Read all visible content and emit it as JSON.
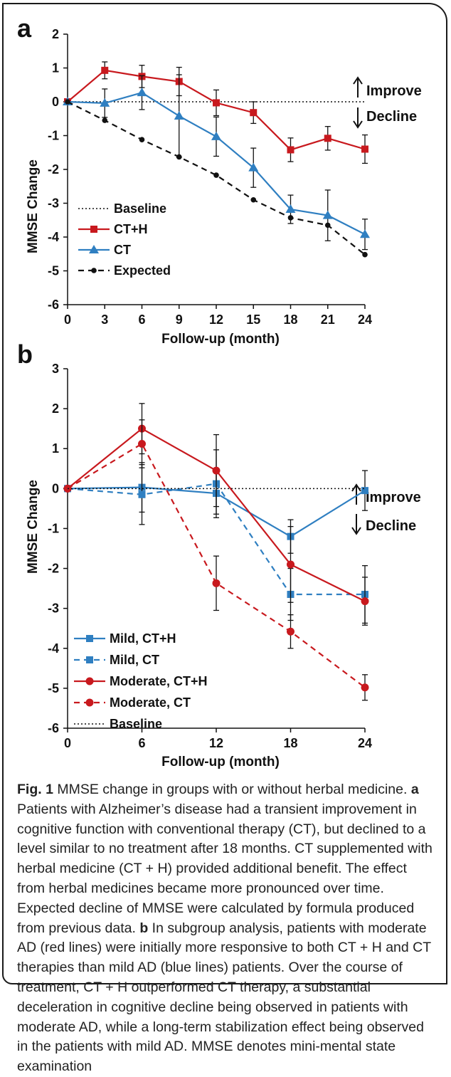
{
  "colors": {
    "red": "#c8191e",
    "blue": "#2f7fc1",
    "black": "#111111"
  },
  "chart_data": [
    {
      "type": "line",
      "panel_label": "a",
      "xlabel": "Follow-up (month)",
      "ylabel": "MMSE Change",
      "xlim": [
        0,
        24
      ],
      "ylim": [
        -6,
        2
      ],
      "xticks": [
        0,
        3,
        6,
        9,
        12,
        15,
        18,
        21,
        24
      ],
      "yticks": [
        2,
        1,
        0,
        -1,
        -2,
        -3,
        -4,
        -5,
        -6
      ],
      "grid": false,
      "legend_position": "lower-left",
      "annotations": [
        "Improve",
        "Decline"
      ],
      "series": [
        {
          "name": "Baseline",
          "style": "dotted",
          "color": "#111111",
          "marker": "none",
          "x": [
            0,
            24
          ],
          "y": [
            0,
            0
          ]
        },
        {
          "name": "CT+H",
          "style": "solid",
          "color": "#c8191e",
          "marker": "square",
          "x": [
            0,
            3,
            6,
            9,
            12,
            15,
            18,
            21,
            24
          ],
          "y": [
            0,
            0.93,
            0.75,
            0.6,
            -0.03,
            -0.32,
            -1.42,
            -1.08,
            -1.4
          ],
          "err": [
            0,
            0.25,
            0.33,
            0.42,
            0.38,
            0.32,
            0.35,
            0.35,
            0.42
          ]
        },
        {
          "name": "CT",
          "style": "solid",
          "color": "#2f7fc1",
          "marker": "triangle",
          "x": [
            0,
            3,
            6,
            9,
            12,
            15,
            18,
            21,
            24
          ],
          "y": [
            0,
            -0.04,
            0.27,
            -0.42,
            -1.03,
            -1.95,
            -3.18,
            -3.36,
            -3.92
          ],
          "err": [
            0,
            0.42,
            0.5,
            1.22,
            0.58,
            0.58,
            0.42,
            0.75,
            0.45
          ]
        },
        {
          "name": "Expected",
          "style": "dashed",
          "color": "#111111",
          "marker": "circle",
          "x": [
            0,
            3,
            6,
            9,
            12,
            15,
            18,
            21,
            24
          ],
          "y": [
            0,
            -0.55,
            -1.12,
            -1.63,
            -2.17,
            -2.9,
            -3.43,
            -3.65,
            -4.52
          ],
          "err": []
        }
      ]
    },
    {
      "type": "line",
      "panel_label": "b",
      "xlabel": "Follow-up (month)",
      "ylabel": "MMSE Change",
      "xlim": [
        0,
        24
      ],
      "ylim": [
        -6,
        3
      ],
      "xticks": [
        0,
        6,
        12,
        18,
        24
      ],
      "yticks": [
        3,
        2,
        1,
        0,
        -1,
        -2,
        -3,
        -4,
        -5,
        -6
      ],
      "grid": false,
      "legend_position": "lower-left",
      "annotations": [
        "Improve",
        "Decline"
      ],
      "series": [
        {
          "name": "Mild, CT+H",
          "style": "solid",
          "color": "#2f7fc1",
          "marker": "square",
          "x": [
            0,
            6,
            12,
            18,
            24
          ],
          "y": [
            0,
            0.03,
            -0.12,
            -1.2,
            -0.05
          ],
          "err": [
            0,
            0.62,
            0.52,
            0.42,
            0.5
          ]
        },
        {
          "name": "Mild, CT",
          "style": "dashed",
          "color": "#2f7fc1",
          "marker": "square",
          "x": [
            0,
            6,
            12,
            18,
            24
          ],
          "y": [
            0,
            -0.15,
            0.12,
            -2.65,
            -2.65
          ],
          "err": [
            0,
            0.75,
            0.85,
            0.65,
            0.72
          ]
        },
        {
          "name": "Moderate, CT+H",
          "style": "solid",
          "color": "#c8191e",
          "marker": "circle",
          "x": [
            0,
            6,
            12,
            18,
            24
          ],
          "y": [
            0,
            1.5,
            0.45,
            -1.9,
            -2.82
          ],
          "err": [
            0,
            0.63,
            0.9,
            0.95,
            0.6
          ]
        },
        {
          "name": "Moderate, CT",
          "style": "dashed",
          "color": "#c8191e",
          "marker": "circle",
          "x": [
            0,
            6,
            12,
            18,
            24
          ],
          "y": [
            0,
            1.12,
            -2.37,
            -3.58,
            -4.98
          ],
          "err": [
            0,
            0.6,
            0.68,
            0.42,
            0.32
          ]
        },
        {
          "name": "Baseline",
          "style": "dotted",
          "color": "#111111",
          "marker": "none",
          "x": [
            0,
            24
          ],
          "y": [
            0,
            0
          ]
        }
      ]
    }
  ],
  "caption": {
    "fig_label": "Fig. 1",
    "title": " MMSE change in groups with or without herbal medicine. ",
    "label_a": "a",
    "text_a": " Patients with Alzheimer’s disease had a transient improvement in cognitive function with conventional therapy (CT), but declined to a level similar to no treatment after 18 months. CT supplemented with herbal medicine (CT + H) provided additional benefit. The effect from herbal medicines became more pronounced over time. Expected decline of MMSE were calculated by formula produced from previous data. ",
    "label_b": "b",
    "text_b": " In subgroup analysis, patients with moderate AD (red lines) were initially more responsive to both CT + H and CT therapies than mild AD (blue lines) patients. Over the course of treatment, CT + H outperformed CT therapy, a substantial deceleration in cognitive decline being observed in patients with moderate AD, while a long-term stabilization effect being observed in the patients with mild AD. MMSE denotes mini-mental state examination"
  }
}
